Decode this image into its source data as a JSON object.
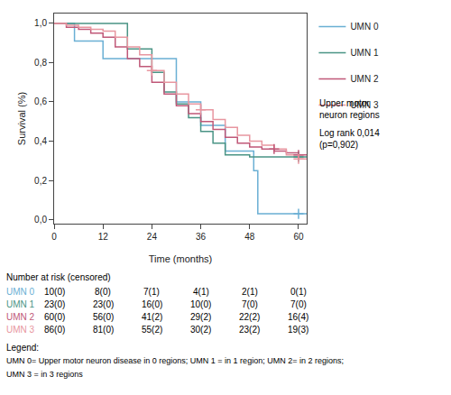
{
  "chart_data": {
    "type": "step",
    "xlabel": "Time (months)",
    "ylabel": "Survival (%)",
    "xlim": [
      0,
      62
    ],
    "ylim": [
      -0.02,
      1.05
    ],
    "xticks": [
      0,
      12,
      24,
      36,
      48,
      60
    ],
    "yticks": [
      {
        "value": 0.0,
        "label": "0,0"
      },
      {
        "value": 0.2,
        "label": "0,2"
      },
      {
        "value": 0.4,
        "label": "0,4"
      },
      {
        "value": 0.6,
        "label": "0,6"
      },
      {
        "value": 0.8,
        "label": "0,8"
      },
      {
        "value": 1.0,
        "label": "1,0"
      }
    ],
    "grid": false,
    "legend": "right",
    "series": [
      {
        "name": "UMN 0",
        "color": "#6AAFD4",
        "marker": "cross",
        "x": [
          0,
          5,
          5,
          12,
          12,
          18,
          18,
          24,
          24,
          30,
          30,
          36,
          36,
          42,
          42,
          49,
          49,
          50,
          50,
          62
        ],
        "values": [
          1.0,
          1.0,
          0.91,
          0.91,
          0.82,
          0.82,
          0.82,
          0.82,
          0.82,
          0.82,
          0.6,
          0.6,
          0.48,
          0.48,
          0.35,
          0.35,
          0.25,
          0.25,
          0.03,
          0.03
        ],
        "censored": {
          "x": [
            60
          ],
          "values": [
            0.03
          ]
        }
      },
      {
        "name": "UMN 1",
        "color": "#4A9485",
        "marker": "cross",
        "x": [
          0,
          12,
          12,
          18,
          18,
          24,
          24,
          27,
          27,
          30,
          30,
          33,
          33,
          36,
          36,
          39,
          39,
          42,
          42,
          48,
          48,
          62
        ],
        "values": [
          1.0,
          1.0,
          1.0,
          1.0,
          0.87,
          0.87,
          0.75,
          0.75,
          0.65,
          0.65,
          0.59,
          0.59,
          0.52,
          0.52,
          0.45,
          0.45,
          0.39,
          0.39,
          0.33,
          0.33,
          0.32,
          0.32
        ],
        "censored": {
          "x": [
            60
          ],
          "values": [
            0.32
          ]
        }
      },
      {
        "name": "UMN 2",
        "color": "#C05878",
        "marker": "cross",
        "x": [
          0,
          3,
          3,
          6,
          6,
          9,
          9,
          12,
          12,
          15,
          15,
          18,
          18,
          21,
          21,
          24,
          24,
          27,
          27,
          30,
          30,
          33,
          33,
          36,
          36,
          39,
          39,
          42,
          42,
          45,
          45,
          48,
          48,
          51,
          51,
          54,
          54,
          57,
          57,
          60,
          60,
          62
        ],
        "values": [
          1.0,
          1.0,
          0.98,
          0.98,
          0.97,
          0.97,
          0.95,
          0.95,
          0.93,
          0.93,
          0.88,
          0.88,
          0.82,
          0.82,
          0.78,
          0.78,
          0.7,
          0.7,
          0.64,
          0.64,
          0.58,
          0.58,
          0.54,
          0.54,
          0.5,
          0.5,
          0.46,
          0.46,
          0.42,
          0.42,
          0.39,
          0.39,
          0.37,
          0.37,
          0.36,
          0.36,
          0.35,
          0.35,
          0.34,
          0.34,
          0.33,
          0.33
        ],
        "censored": {
          "x": [
            54,
            60
          ],
          "values": [
            0.36,
            0.33
          ]
        }
      },
      {
        "name": "UMN 3",
        "color": "#E896A0",
        "marker": "cross",
        "x": [
          0,
          3,
          3,
          6,
          6,
          9,
          9,
          12,
          12,
          15,
          15,
          18,
          18,
          21,
          21,
          24,
          24,
          27,
          27,
          30,
          30,
          33,
          33,
          36,
          36,
          39,
          39,
          42,
          42,
          45,
          45,
          48,
          48,
          51,
          51,
          54,
          54,
          57,
          57,
          60,
          60,
          62
        ],
        "values": [
          1.0,
          1.0,
          0.99,
          0.99,
          0.98,
          0.98,
          0.97,
          0.97,
          0.96,
          0.96,
          0.93,
          0.93,
          0.88,
          0.88,
          0.84,
          0.84,
          0.76,
          0.76,
          0.7,
          0.7,
          0.64,
          0.64,
          0.59,
          0.59,
          0.56,
          0.56,
          0.51,
          0.51,
          0.47,
          0.47,
          0.43,
          0.43,
          0.4,
          0.4,
          0.38,
          0.38,
          0.36,
          0.36,
          0.33,
          0.33,
          0.31,
          0.31
        ],
        "censored": {
          "x": [
            24,
            36,
            60
          ],
          "values": [
            0.76,
            0.56,
            0.31
          ]
        }
      }
    ],
    "legend_title": "Upper motor\nneuron regions",
    "annotations": [
      "Log rank 0,014\n(p=0,902)"
    ],
    "risk_table": {
      "title": "Number at risk (censored)",
      "x": [
        0,
        12,
        24,
        36,
        48,
        60
      ],
      "rows": [
        {
          "name": "UMN 0",
          "color": "#6AAFD4",
          "values": [
            "10(0)",
            "8(0)",
            "7(1)",
            "4(1)",
            "2(1)",
            "0(1)"
          ]
        },
        {
          "name": "UMN 1",
          "color": "#4A9485",
          "values": [
            "23(0)",
            "23(0)",
            "16(0)",
            "10(0)",
            "7(0)",
            "7(0)"
          ]
        },
        {
          "name": "UMN 2",
          "color": "#C05878",
          "values": [
            "60(0)",
            "56(0)",
            "41(2)",
            "29(2)",
            "22(2)",
            "16(4)"
          ]
        },
        {
          "name": "UMN 3",
          "color": "#E896A0",
          "values": [
            "86(0)",
            "81(0)",
            "55(2)",
            "30(2)",
            "23(2)",
            "19(3)"
          ]
        }
      ]
    },
    "footnotes": [
      "Legend:",
      "UMN 0= Upper motor neuron disease in 0 regions; UMN 1 = in 1 region; UMN 2= in 2 regions;",
      "UMN 3 = in 3 regions"
    ]
  }
}
